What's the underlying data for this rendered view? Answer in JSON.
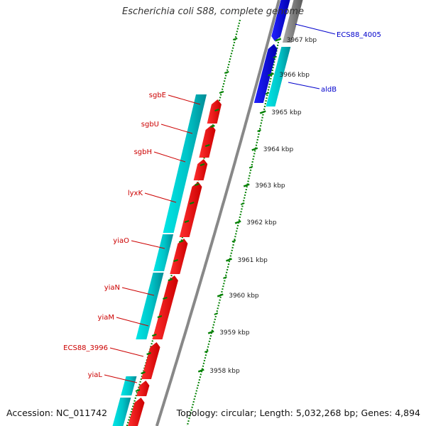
{
  "title": "Escherichia coli S88, complete genome",
  "footer": {
    "accession": "Accession: NC_011742",
    "summary": "Topology: circular; Length: 5,032,268 bp; Genes: 4,894"
  },
  "colors": {
    "gene_minus": "#ff0000",
    "gene_minus_other": "#0000ff",
    "cds_cyan": "#00cccc",
    "backbone": "#888888",
    "tick": "#008000",
    "label_red": "#cc0000",
    "label_blue": "#0000cc"
  },
  "scale": {
    "unit": "kbp",
    "ticks": [
      "3958 kbp",
      "3959 kbp",
      "3960 kbp",
      "3961 kbp",
      "3962 kbp",
      "3963 kbp",
      "3964 kbp",
      "3965 kbp",
      "3966 kbp",
      "3967 kbp"
    ]
  },
  "genes": [
    {
      "name": "ECS88_4005",
      "strand": "upper",
      "color_key": "label_blue"
    },
    {
      "name": "aldB",
      "strand": "upper",
      "color_key": "label_blue"
    },
    {
      "name": "sgbE",
      "strand": "lower",
      "color_key": "label_red"
    },
    {
      "name": "sgbU",
      "strand": "lower",
      "color_key": "label_red"
    },
    {
      "name": "sgbH",
      "strand": "lower",
      "color_key": "label_red"
    },
    {
      "name": "lyxK",
      "strand": "lower",
      "color_key": "label_red"
    },
    {
      "name": "yiaO",
      "strand": "lower",
      "color_key": "label_red"
    },
    {
      "name": "yiaN",
      "strand": "lower",
      "color_key": "label_red"
    },
    {
      "name": "yiaM",
      "strand": "lower",
      "color_key": "label_red"
    },
    {
      "name": "ECS88_3996",
      "strand": "lower",
      "color_key": "label_red"
    },
    {
      "name": "yiaL",
      "strand": "lower",
      "color_key": "label_red"
    }
  ]
}
